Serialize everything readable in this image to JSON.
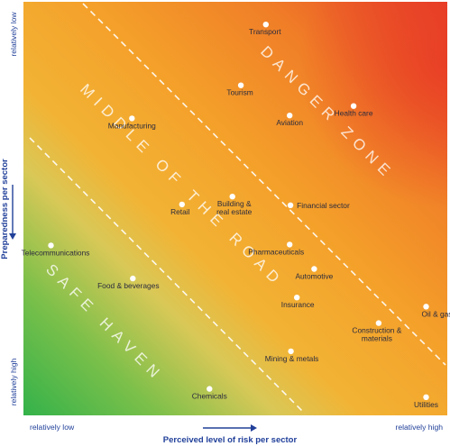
{
  "chart_data": {
    "type": "scatter",
    "title": "",
    "xlabel": "Perceived level of risk per sector",
    "ylabel": "Preparedness per sector",
    "x_low_label": "relatively low",
    "x_high_label": "relatively high",
    "y_top_label": "relatively low",
    "y_bottom_label": "relatively high",
    "xlim": [
      0,
      100
    ],
    "ylim": [
      0,
      100
    ],
    "grid": false,
    "legend": "none",
    "colors": {
      "safe": "#3db549",
      "middle": "#e8c85a",
      "orange": "#f3a12a",
      "danger": "#e8452a",
      "axis_text": "#21409a",
      "point_text": "#2b2b3d",
      "marker": "#ffffff"
    },
    "zones": [
      {
        "name": "safe",
        "label": "SAFE HAVEN"
      },
      {
        "name": "middle",
        "label": "MIDDLE OF THE ROAD"
      },
      {
        "name": "danger",
        "label": "DANGER ZONE"
      }
    ],
    "points": [
      {
        "label": "Transport",
        "x": 57.2,
        "y": 94.5
      },
      {
        "label": "Tourism",
        "x": 51.3,
        "y": 79.8
      },
      {
        "label": "Health care",
        "x": 77.9,
        "y": 74.8
      },
      {
        "label": "Aviation",
        "x": 62.8,
        "y": 72.5
      },
      {
        "label": "Manufacturing",
        "x": 25.6,
        "y": 71.8
      },
      {
        "label": "Building & real estate",
        "x": 49.3,
        "y": 52.9
      },
      {
        "label": "Retail",
        "x": 37.4,
        "y": 51.0
      },
      {
        "label": "Financial sector",
        "x": 63.0,
        "y": 50.8
      },
      {
        "label": "Telecommunications",
        "x": 6.5,
        "y": 41.1
      },
      {
        "label": "Pharmaceuticals",
        "x": 62.8,
        "y": 41.3
      },
      {
        "label": "Automotive",
        "x": 68.6,
        "y": 35.4
      },
      {
        "label": "Food & beverages",
        "x": 25.8,
        "y": 33.1
      },
      {
        "label": "Insurance",
        "x": 64.5,
        "y": 28.5
      },
      {
        "label": "Oil & gas",
        "x": 95.0,
        "y": 26.3
      },
      {
        "label": "Construction & materials",
        "x": 83.8,
        "y": 22.3
      },
      {
        "label": "Mining & metals",
        "x": 63.1,
        "y": 15.5
      },
      {
        "label": "Chemicals",
        "x": 43.9,
        "y": 6.4
      },
      {
        "label": "Utilities",
        "x": 95.0,
        "y": 4.4
      }
    ]
  }
}
